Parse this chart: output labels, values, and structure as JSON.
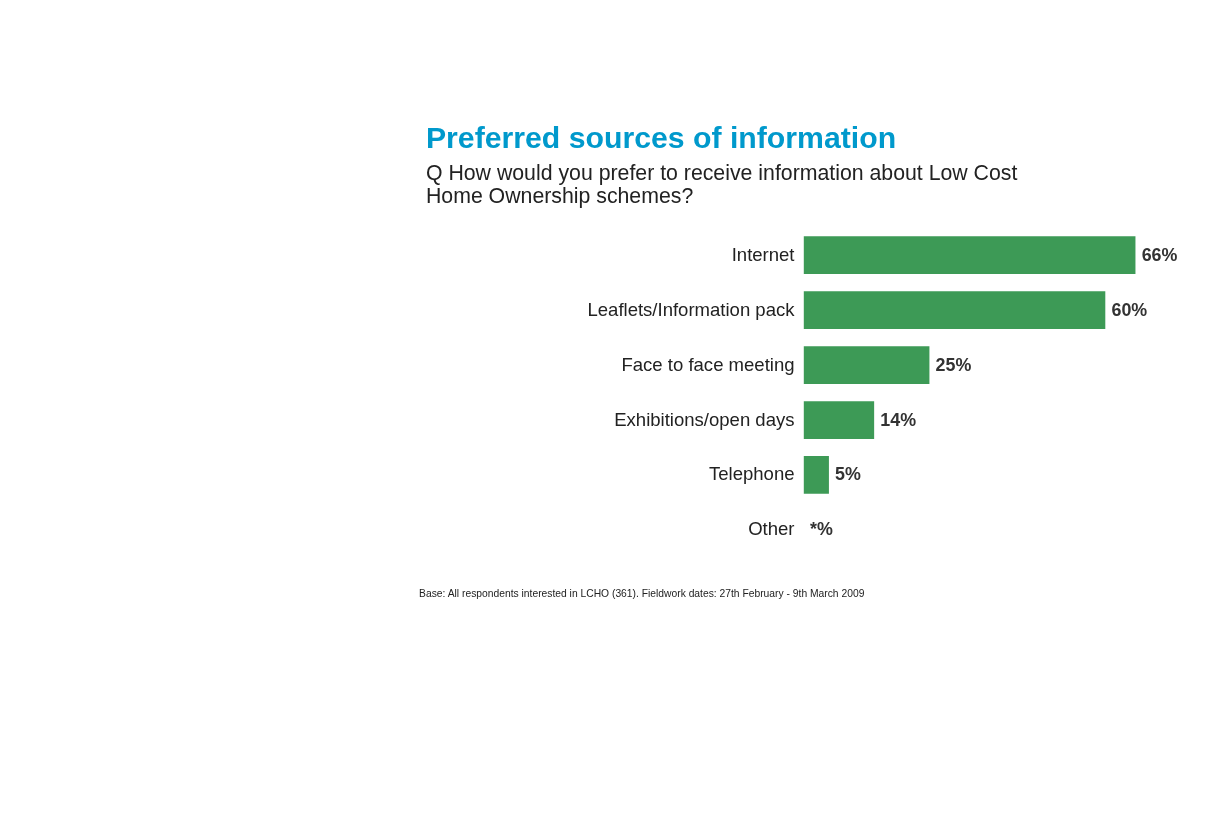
{
  "chart_data": {
    "type": "bar",
    "orientation": "horizontal",
    "title": "Preferred sources of information",
    "subtitle": "Q   How would you prefer to receive information about Low Cost Home Ownership schemes?",
    "categories": [
      "Internet",
      "Leaflets/Information pack",
      "Face to face meeting",
      "Exhibitions/open days",
      "Telephone",
      "Other"
    ],
    "values": [
      66,
      60,
      25,
      14,
      5,
      0
    ],
    "value_labels": [
      "66%",
      "60%",
      "25%",
      "14%",
      "5%",
      "*%"
    ],
    "color": "#3d9a56",
    "annotations": [
      "Base: All respondents interested in LCHO (361).  Fieldwork dates: 27th February - 9th March 2009"
    ]
  }
}
